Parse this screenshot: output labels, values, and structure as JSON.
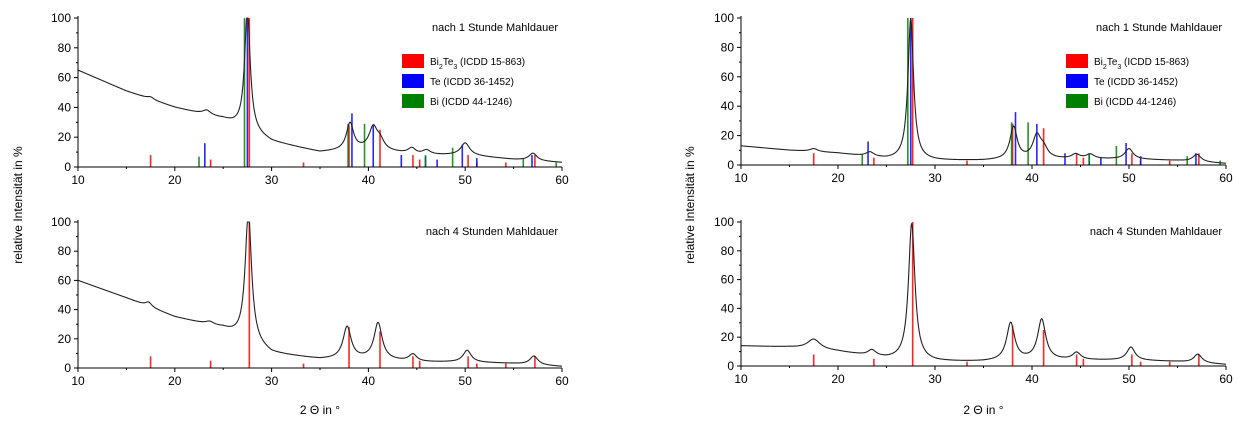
{
  "chart_data": [
    {
      "type": "line",
      "panel": "left-top",
      "annotation": "nach 1 Stunde Mahldauer",
      "xlim": [
        10,
        60
      ],
      "ylim": [
        0,
        100
      ],
      "xticks": [
        "10",
        "20",
        "30",
        "40",
        "50",
        "60"
      ],
      "yticks": [
        "0",
        "20",
        "40",
        "60",
        "80",
        "100"
      ],
      "legend": [
        {
          "name": "Bi2Te3 (ICDD 15-863)",
          "prefix": "Bi",
          "sub1": "2",
          "mid": "Te",
          "sub2": "3",
          "suffix": " (ICDD 15-863)",
          "color": "#ff0000"
        },
        {
          "name": "Te (ICDD 36-1452)",
          "text": "Te (ICDD 36-1452)",
          "color": "#0000ff"
        },
        {
          "name": "Bi (ICDD 44-1246)",
          "text": "Bi (ICDD 44-1246)",
          "color": "#008000"
        }
      ],
      "background": [
        [
          10,
          65
        ],
        [
          15,
          51
        ],
        [
          20,
          40
        ],
        [
          25,
          32
        ],
        [
          30,
          17
        ],
        [
          35,
          10
        ],
        [
          40,
          12
        ],
        [
          45,
          8
        ],
        [
          50,
          8
        ],
        [
          55,
          5
        ],
        [
          60,
          3
        ]
      ],
      "peaks": [
        [
          17.5,
          1.5,
          0.4
        ],
        [
          23.3,
          3,
          0.5
        ],
        [
          27.5,
          80,
          0.35
        ],
        [
          38.1,
          18,
          0.45
        ],
        [
          40.5,
          14,
          0.5
        ],
        [
          41.2,
          6,
          0.5
        ],
        [
          44.5,
          4,
          0.5
        ],
        [
          46,
          3,
          0.5
        ],
        [
          50,
          8,
          0.55
        ],
        [
          57,
          5,
          0.5
        ]
      ],
      "stick_series": [
        {
          "name": "Bi2Te3",
          "color": "#ff0000",
          "sticks": [
            [
              17.5,
              8
            ],
            [
              23.7,
              5
            ],
            [
              27.7,
              100
            ],
            [
              33.3,
              3
            ],
            [
              38.0,
              28
            ],
            [
              41.2,
              25
            ],
            [
              44.6,
              8
            ],
            [
              45.3,
              5
            ],
            [
              50.3,
              8
            ],
            [
              51.2,
              3
            ],
            [
              54.2,
              3
            ],
            [
              57.2,
              8
            ]
          ]
        },
        {
          "name": "Te",
          "color": "#0000ff",
          "sticks": [
            [
              23.1,
              16
            ],
            [
              27.5,
              100
            ],
            [
              38.3,
              36
            ],
            [
              40.5,
              28
            ],
            [
              43.4,
              8
            ],
            [
              45.9,
              7
            ],
            [
              47.1,
              5
            ],
            [
              49.7,
              15
            ],
            [
              51.2,
              6
            ],
            [
              56.9,
              8
            ]
          ]
        },
        {
          "name": "Bi",
          "color": "#008000",
          "sticks": [
            [
              22.5,
              7
            ],
            [
              27.2,
              100
            ],
            [
              37.9,
              29
            ],
            [
              39.6,
              29
            ],
            [
              45.9,
              8
            ],
            [
              48.7,
              13
            ],
            [
              56.0,
              6
            ],
            [
              59.4,
              3
            ]
          ]
        }
      ]
    },
    {
      "type": "line",
      "panel": "left-bottom",
      "annotation": "nach 4 Stunden Mahldauer",
      "xlabel": "2 Θ in °",
      "xlim": [
        10,
        60
      ],
      "ylim": [
        0,
        100
      ],
      "xticks": [
        "10",
        "20",
        "30",
        "40",
        "50",
        "60"
      ],
      "yticks": [
        "0",
        "20",
        "40",
        "60",
        "80",
        "100"
      ],
      "background": [
        [
          10,
          60
        ],
        [
          15,
          48
        ],
        [
          20,
          35
        ],
        [
          25,
          27
        ],
        [
          30,
          10
        ],
        [
          35,
          6
        ],
        [
          40,
          6
        ],
        [
          45,
          4
        ],
        [
          50,
          4
        ],
        [
          55,
          3
        ],
        [
          60,
          1
        ]
      ],
      "peaks": [
        [
          17.3,
          3,
          0.4
        ],
        [
          23.6,
          2,
          0.5
        ],
        [
          27.6,
          88,
          0.4
        ],
        [
          37.8,
          22,
          0.5
        ],
        [
          41.0,
          25,
          0.5
        ],
        [
          44.6,
          5,
          0.5
        ],
        [
          50.2,
          8,
          0.5
        ],
        [
          57.1,
          6,
          0.5
        ]
      ],
      "stick_series": [
        {
          "name": "Bi2Te3",
          "color": "#ff0000",
          "sticks": [
            [
              17.5,
              8
            ],
            [
              23.7,
              5
            ],
            [
              27.7,
              100
            ],
            [
              33.3,
              3
            ],
            [
              38.0,
              28
            ],
            [
              41.2,
              25
            ],
            [
              44.6,
              8
            ],
            [
              45.3,
              5
            ],
            [
              50.3,
              8
            ],
            [
              51.2,
              3
            ],
            [
              54.2,
              3
            ],
            [
              57.2,
              8
            ]
          ]
        }
      ]
    },
    {
      "type": "line",
      "panel": "right-top",
      "annotation": "nach 1 Stunde Mahldauer",
      "xlim": [
        10,
        60
      ],
      "ylim": [
        0,
        100
      ],
      "xticks": [
        "10",
        "20",
        "30",
        "40",
        "50",
        "60"
      ],
      "yticks": [
        "0",
        "20",
        "40",
        "60",
        "80",
        "100"
      ],
      "legend": [
        {
          "name": "Bi2Te3 (ICDD 15-863)",
          "prefix": "Bi",
          "sub1": "2",
          "mid": "Te",
          "sub2": "3",
          "suffix": " (ICDD 15-863)",
          "color": "#ff0000"
        },
        {
          "name": "Te (ICDD 36-1452)",
          "text": "Te (ICDD 36-1452)",
          "color": "#0000ff"
        },
        {
          "name": "Bi (ICDD 44-1246)",
          "text": "Bi (ICDD 44-1246)",
          "color": "#008000"
        }
      ],
      "background": [
        [
          10,
          13
        ],
        [
          15,
          10
        ],
        [
          20,
          8
        ],
        [
          25,
          4
        ],
        [
          30,
          3
        ],
        [
          35,
          3
        ],
        [
          40,
          4
        ],
        [
          45,
          4
        ],
        [
          50,
          4
        ],
        [
          55,
          3
        ],
        [
          60,
          1
        ]
      ],
      "peaks": [
        [
          17.5,
          2,
          0.5
        ],
        [
          23.3,
          3,
          0.5
        ],
        [
          27.5,
          96,
          0.35
        ],
        [
          38.1,
          22,
          0.45
        ],
        [
          40.5,
          15,
          0.5
        ],
        [
          41.2,
          6,
          0.5
        ],
        [
          44.5,
          3,
          0.5
        ],
        [
          46,
          3,
          0.5
        ],
        [
          50,
          7,
          0.5
        ],
        [
          57,
          5,
          0.5
        ]
      ],
      "stick_series": [
        {
          "name": "Bi2Te3",
          "color": "#ff0000",
          "sticks": [
            [
              17.5,
              8
            ],
            [
              23.7,
              5
            ],
            [
              27.7,
              100
            ],
            [
              33.3,
              3
            ],
            [
              38.0,
              28
            ],
            [
              41.2,
              25
            ],
            [
              44.6,
              8
            ],
            [
              45.3,
              5
            ],
            [
              50.3,
              8
            ],
            [
              51.2,
              3
            ],
            [
              54.2,
              3
            ],
            [
              57.2,
              8
            ]
          ]
        },
        {
          "name": "Te",
          "color": "#0000ff",
          "sticks": [
            [
              23.1,
              16
            ],
            [
              27.5,
              100
            ],
            [
              38.3,
              36
            ],
            [
              40.5,
              28
            ],
            [
              43.4,
              8
            ],
            [
              45.9,
              7
            ],
            [
              47.1,
              5
            ],
            [
              49.7,
              15
            ],
            [
              51.2,
              6
            ],
            [
              56.9,
              8
            ]
          ]
        },
        {
          "name": "Bi",
          "color": "#008000",
          "sticks": [
            [
              22.5,
              7
            ],
            [
              27.2,
              100
            ],
            [
              37.9,
              29
            ],
            [
              39.6,
              29
            ],
            [
              45.9,
              8
            ],
            [
              48.7,
              13
            ],
            [
              56.0,
              6
            ],
            [
              59.4,
              3
            ]
          ]
        }
      ]
    },
    {
      "type": "line",
      "panel": "right-bottom",
      "annotation": "nach 4 Stunden Mahldauer",
      "xlabel": "2 Θ in °",
      "xlim": [
        10,
        60
      ],
      "ylim": [
        0,
        100
      ],
      "xticks": [
        "10",
        "20",
        "30",
        "40",
        "50",
        "60"
      ],
      "yticks": [
        "0",
        "20",
        "40",
        "60",
        "80",
        "100"
      ],
      "background": [
        [
          10,
          14
        ],
        [
          15,
          13
        ],
        [
          20,
          10
        ],
        [
          25,
          5
        ],
        [
          30,
          3
        ],
        [
          35,
          3
        ],
        [
          40,
          4
        ],
        [
          45,
          4
        ],
        [
          50,
          4
        ],
        [
          55,
          3
        ],
        [
          60,
          1
        ]
      ],
      "peaks": [
        [
          17.5,
          7,
          0.8
        ],
        [
          23.5,
          4,
          0.5
        ],
        [
          27.6,
          95,
          0.4
        ],
        [
          37.8,
          26,
          0.5
        ],
        [
          41.0,
          28,
          0.5
        ],
        [
          44.6,
          5,
          0.5
        ],
        [
          50.2,
          9,
          0.5
        ],
        [
          57.1,
          6,
          0.5
        ]
      ],
      "stick_series": [
        {
          "name": "Bi2Te3",
          "color": "#ff0000",
          "sticks": [
            [
              17.5,
              8
            ],
            [
              23.7,
              5
            ],
            [
              27.7,
              100
            ],
            [
              33.3,
              3
            ],
            [
              38.0,
              28
            ],
            [
              41.2,
              25
            ],
            [
              44.6,
              8
            ],
            [
              45.3,
              5
            ],
            [
              50.3,
              8
            ],
            [
              51.2,
              3
            ],
            [
              54.2,
              3
            ],
            [
              57.2,
              8
            ]
          ]
        }
      ]
    }
  ],
  "figure": {
    "ylabel": "relative Intensität in %"
  }
}
